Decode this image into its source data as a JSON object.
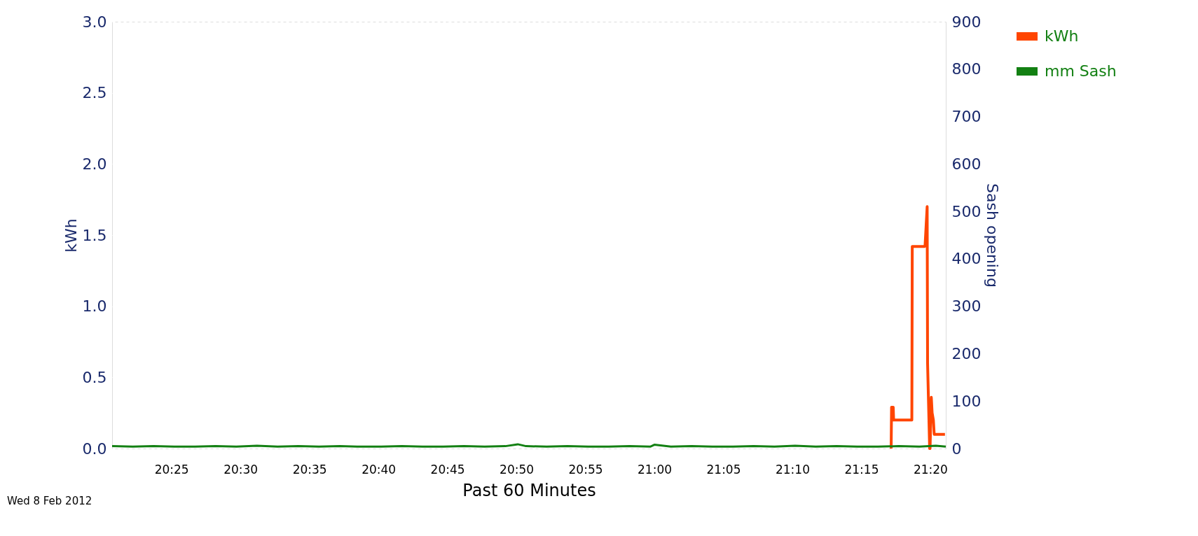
{
  "chart_data": {
    "type": "line",
    "xlabel": "Past 60 Minutes",
    "ylabel": "kWh",
    "y2label": "Sash opening",
    "annotations": [
      "Wed 8 Feb 2012"
    ],
    "xlim": [
      20.345,
      21.352
    ],
    "xticks": [
      {
        "value": 20.41667,
        "label": "20:25"
      },
      {
        "value": 20.5,
        "label": "20:30"
      },
      {
        "value": 20.58333,
        "label": "20:35"
      },
      {
        "value": 20.66667,
        "label": "20:40"
      },
      {
        "value": 20.75,
        "label": "20:45"
      },
      {
        "value": 20.83333,
        "label": "20:50"
      },
      {
        "value": 20.91667,
        "label": "20:55"
      },
      {
        "value": 21.0,
        "label": "21:00"
      },
      {
        "value": 21.08333,
        "label": "21:05"
      },
      {
        "value": 21.16667,
        "label": "21:10"
      },
      {
        "value": 21.25,
        "label": "21:15"
      },
      {
        "value": 21.33333,
        "label": "21:20"
      }
    ],
    "ylim": [
      0,
      3
    ],
    "yticks": [
      {
        "value": 0,
        "label": "0.0"
      },
      0.5,
      {
        "value": 1,
        "label": "1.0"
      },
      1.5,
      {
        "value": 2,
        "label": "2.0"
      },
      2.5,
      {
        "value": 3,
        "label": "3.0"
      }
    ],
    "y2lim": [
      0,
      900
    ],
    "y2ticks": [
      0,
      100,
      200,
      300,
      400,
      500,
      600,
      700,
      800,
      900
    ],
    "grid": true,
    "legend": "top right",
    "line_style": "solid",
    "marker": "none",
    "series": [
      {
        "name": "kWh",
        "color": "#ff4500",
        "x": [
          21.286,
          21.2865,
          21.2885,
          21.289,
          21.311,
          21.3115,
          21.3265,
          21.327,
          21.3295,
          21.33,
          21.3325,
          21.333,
          21.3345,
          21.3355,
          21.337,
          21.338,
          21.351
        ],
        "values": [
          0,
          0.29,
          0.29,
          0.2,
          0.2,
          1.42,
          1.42,
          1.43,
          1.7,
          0.6,
          0.0,
          0.0,
          0.36,
          0.25,
          0.2,
          0.1,
          0.1
        ]
      },
      {
        "name": "mm Sash",
        "color": "#138013",
        "axis": "y2",
        "x": [
          20.345,
          20.37,
          20.395,
          20.42,
          20.445,
          20.47,
          20.495,
          20.52,
          20.545,
          20.57,
          20.595,
          20.62,
          20.645,
          20.67,
          20.695,
          20.72,
          20.745,
          20.77,
          20.795,
          20.82,
          20.835,
          20.845,
          20.87,
          20.895,
          20.92,
          20.945,
          20.97,
          20.995,
          21.0,
          21.02,
          21.045,
          21.07,
          21.095,
          21.12,
          21.145,
          21.17,
          21.195,
          21.22,
          21.245,
          21.27,
          21.295,
          21.32,
          21.34,
          21.352
        ],
        "values": [
          5,
          4,
          5,
          4,
          4,
          5,
          4,
          6,
          4,
          5,
          4,
          5,
          4,
          4,
          5,
          4,
          4,
          5,
          4,
          5,
          9,
          5,
          4,
          5,
          4,
          4,
          5,
          4,
          8,
          4,
          5,
          4,
          4,
          5,
          4,
          6,
          4,
          5,
          4,
          4,
          5,
          4,
          6,
          4
        ]
      }
    ]
  }
}
